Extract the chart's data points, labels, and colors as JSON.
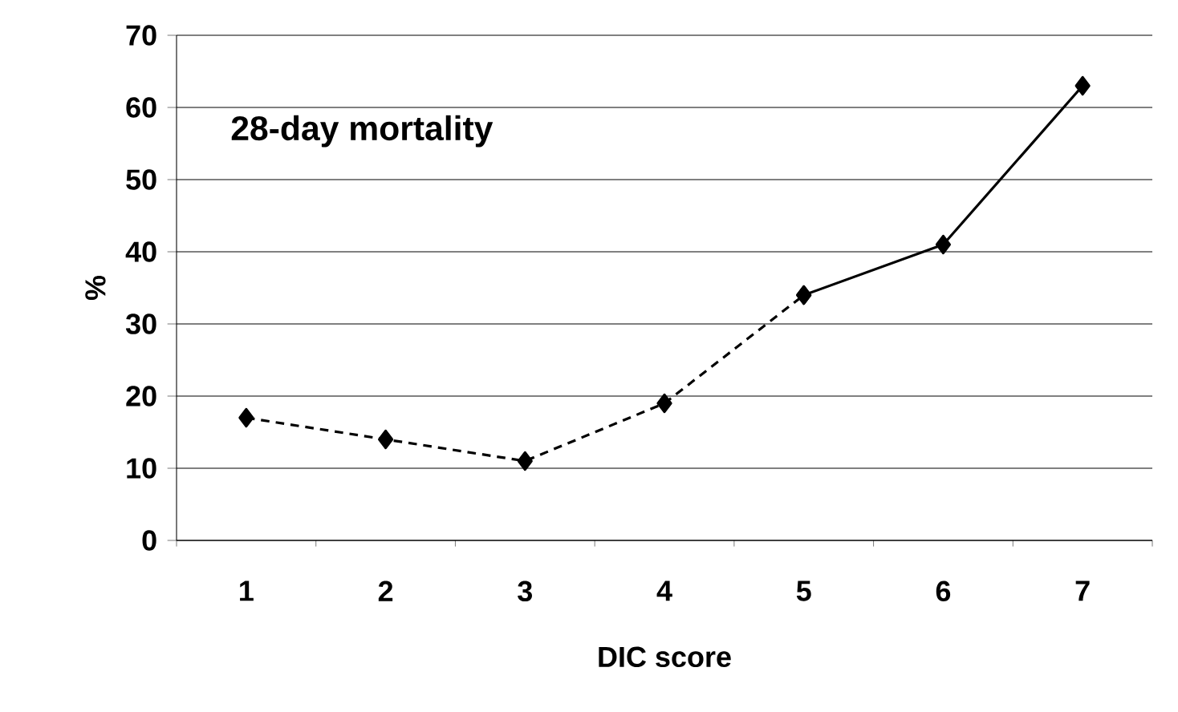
{
  "chart_data": {
    "type": "line",
    "xlabel": "DIC score",
    "ylabel": "%",
    "annotations": [
      "28-day mortality"
    ],
    "categories": [
      "1",
      "2",
      "3",
      "4",
      "5",
      "6",
      "7"
    ],
    "series": [
      {
        "color": "#000000",
        "line_style": "dashed",
        "values": [
          17,
          14,
          11,
          19,
          34,
          null,
          null
        ]
      },
      {
        "color": "#000000",
        "line_style": "solid",
        "values": [
          null,
          null,
          null,
          null,
          34,
          41,
          63
        ]
      }
    ],
    "ylim": [
      0,
      70
    ],
    "yticks": [
      0,
      10,
      20,
      30,
      40,
      50,
      60,
      70
    ],
    "grid": "y",
    "marker": "diamond"
  }
}
